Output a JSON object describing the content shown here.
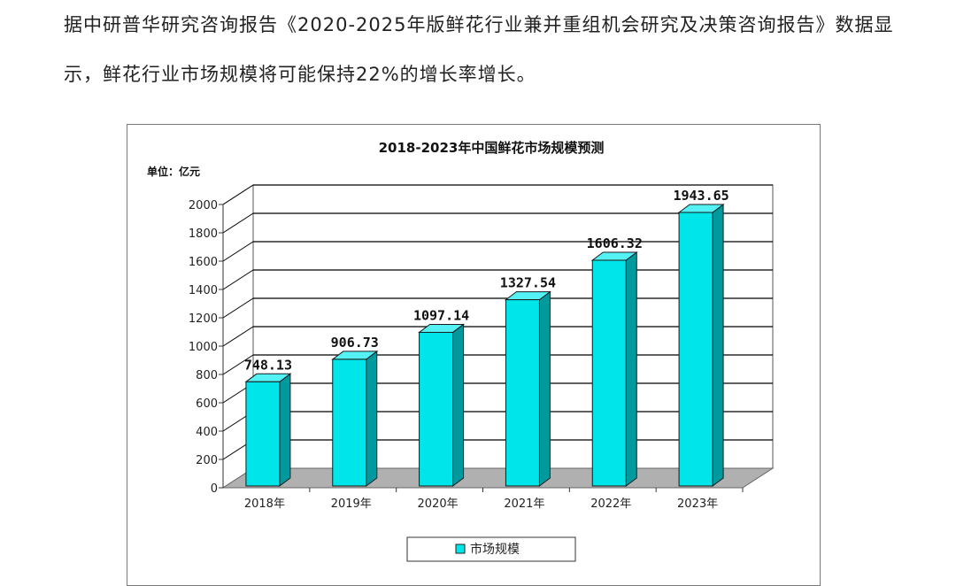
{
  "article": {
    "paragraph": "据中研普华研究咨询报告《2020-2025年版鲜花行业兼并重组机会研究及决策咨询报告》数据显示，鲜花行业市场规模将可能保持22%的增长率增长。"
  },
  "chart_data": {
    "type": "bar",
    "title": "2018-2023年中国鲜花市场规模预测",
    "unit": "单位：亿元",
    "categories": [
      "2018年",
      "2019年",
      "2020年",
      "2021年",
      "2022年",
      "2023年"
    ],
    "series": [
      {
        "name": "市场规模",
        "values": [
          748.13,
          906.73,
          1097.14,
          1327.54,
          1606.32,
          1943.65
        ],
        "labels": [
          "748.13",
          "906.73",
          "1097.14",
          "1327.54",
          "1606.32",
          "1943.65"
        ]
      }
    ],
    "ylim": [
      0,
      2000
    ],
    "yticks": [
      "0",
      "200",
      "400",
      "600",
      "800",
      "1000",
      "1200",
      "1400",
      "1600",
      "1800",
      "2000"
    ],
    "grid": true,
    "legend_position": "bottom",
    "bar_color": "#00e5ea",
    "bar_side_color": "#009a9e",
    "bar_top_color": "#55f2f5",
    "floor_color": "#b0b0b0"
  }
}
